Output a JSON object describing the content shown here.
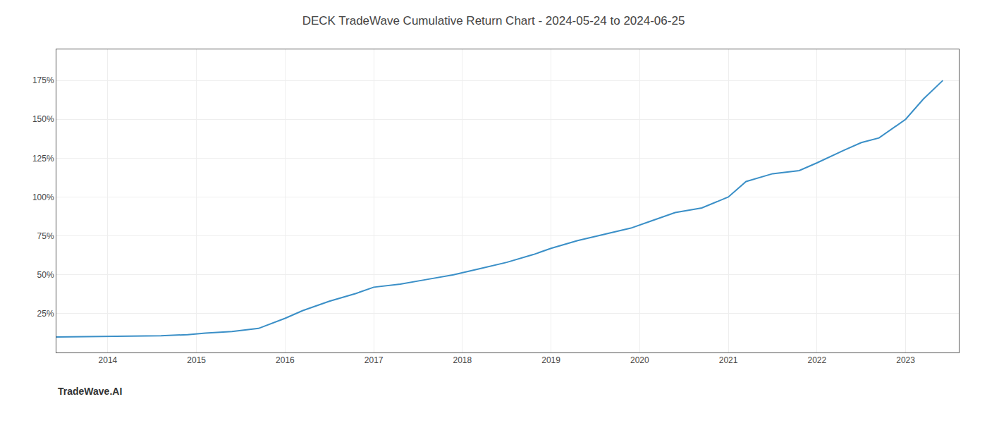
{
  "chart_data": {
    "type": "line",
    "title": "DECK TradeWave Cumulative Return Chart - 2024-05-24 to 2024-06-25",
    "annotations": [
      "TradeWave.AI"
    ],
    "x": [
      2013.42,
      2013.7,
      2014.0,
      2014.3,
      2014.6,
      2014.9,
      2015.1,
      2015.4,
      2015.7,
      2016.0,
      2016.2,
      2016.5,
      2016.8,
      2017.0,
      2017.3,
      2017.6,
      2017.9,
      2018.2,
      2018.5,
      2018.8,
      2019.0,
      2019.3,
      2019.6,
      2019.9,
      2020.1,
      2020.4,
      2020.7,
      2021.0,
      2021.2,
      2021.5,
      2021.8,
      2022.0,
      2022.3,
      2022.5,
      2022.7,
      2023.0,
      2023.2,
      2023.42
    ],
    "values": [
      10,
      10.2,
      10.5,
      10.6,
      10.8,
      11.5,
      12.5,
      13.5,
      15.5,
      22,
      27,
      33,
      38,
      42,
      44,
      47,
      50,
      54,
      58,
      63,
      67,
      72,
      76,
      80,
      84,
      90,
      93,
      100,
      110,
      115,
      117,
      122,
      130,
      135,
      138,
      150,
      163,
      175
    ],
    "color": "#3a8fc7",
    "xlim": [
      2013.42,
      2023.6
    ],
    "xticks": [
      2014,
      2015,
      2016,
      2017,
      2018,
      2019,
      2020,
      2021,
      2022,
      2023
    ],
    "ylim": [
      0,
      195
    ],
    "yticks": [
      {
        "value": 25,
        "label": "25%"
      },
      {
        "value": 50,
        "label": "50%"
      },
      {
        "value": 75,
        "label": "75%"
      },
      {
        "value": 100,
        "label": "100%"
      },
      {
        "value": 125,
        "label": "125%"
      },
      {
        "value": 150,
        "label": "150%"
      },
      {
        "value": 175,
        "label": "175%"
      }
    ],
    "grid": true
  }
}
